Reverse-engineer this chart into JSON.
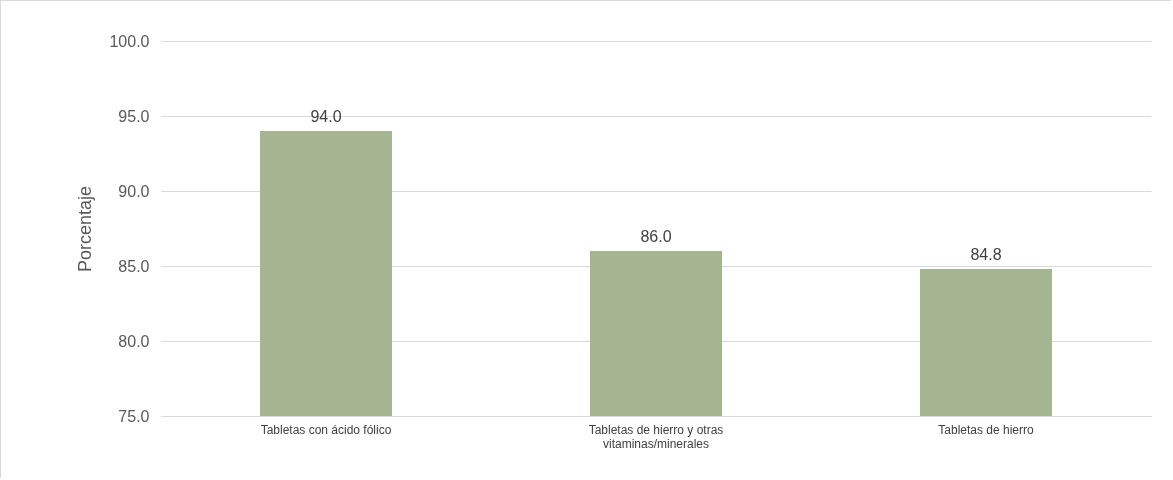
{
  "chart_data": {
    "type": "bar",
    "ylabel": "Porcentaje",
    "categories": [
      "Tabletas con ácido fólico",
      "Tabletas de hierro y otras vitaminas/minerales",
      "Tabletas de hierro"
    ],
    "values": [
      94.0,
      86.0,
      84.8
    ],
    "value_labels": [
      "94.0",
      "86.0",
      "84.8"
    ],
    "color": "#a6b591",
    "ylim": [
      75,
      100
    ],
    "yticks": [
      {
        "value": 75,
        "label": "75.0"
      },
      {
        "value": 80,
        "label": "80.0"
      },
      {
        "value": 85,
        "label": "85.0"
      },
      {
        "value": 90,
        "label": "90.0"
      },
      {
        "value": 95,
        "label": "95.0"
      },
      {
        "value": 100,
        "label": "100.0"
      }
    ],
    "grid": true
  }
}
